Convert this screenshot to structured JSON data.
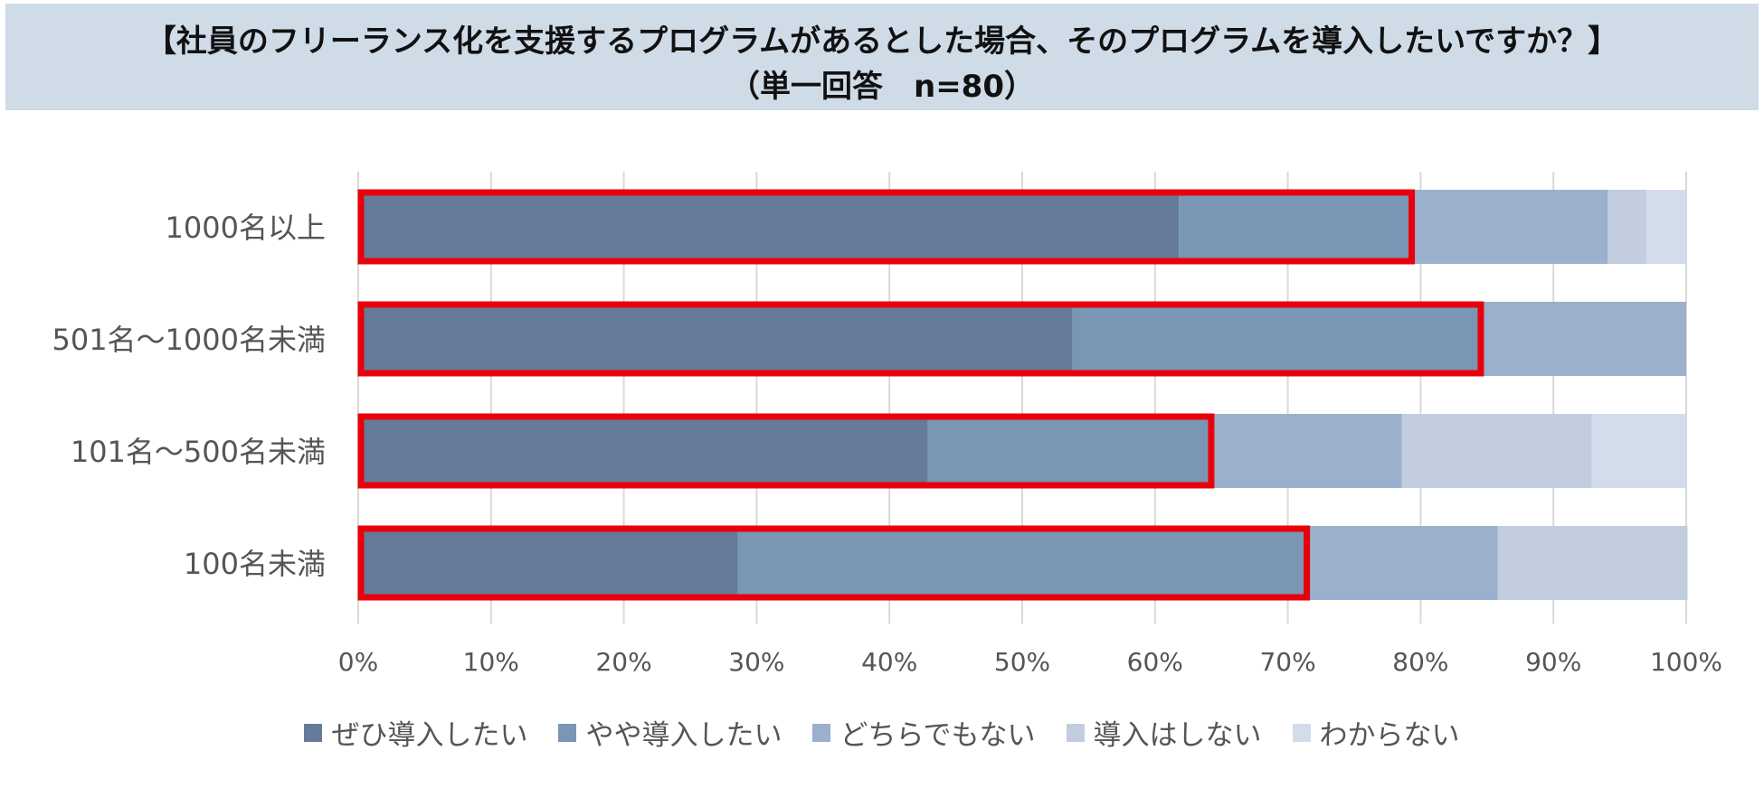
{
  "title": {
    "line1": "【社員のフリーランス化を支援するプログラムがあるとした場合、そのプログラムを導入したいですか？】",
    "line2": "（単一回答　n=80）"
  },
  "colors": {
    "title_band": "#d0dbe8",
    "highlight": "#e8000b",
    "grid": "#d9d9d9",
    "series": [
      "#667b99",
      "#7996b5",
      "#9bb0cd",
      "#c2cedf",
      "#d2dcea"
    ]
  },
  "chart_data": {
    "type": "bar",
    "orientation": "horizontal",
    "stacked": "percent",
    "categories": [
      "1000名以上",
      "501名～1000名未満",
      "101名～500名未満",
      "100名未満"
    ],
    "series": [
      {
        "name": "ぜひ導入したい",
        "values": [
          61.8,
          53.8,
          42.9,
          28.6
        ]
      },
      {
        "name": "やや導入したい",
        "values": [
          17.6,
          30.8,
          21.4,
          42.9
        ]
      },
      {
        "name": "どちらでもない",
        "values": [
          14.7,
          15.4,
          14.3,
          14.3
        ]
      },
      {
        "name": "導入はしない",
        "values": [
          2.9,
          0,
          14.3,
          14.3
        ]
      },
      {
        "name": "わからない",
        "values": [
          3.0,
          0,
          7.1,
          0
        ]
      }
    ],
    "highlight": "ぜひ導入したい + やや導入したい",
    "x_ticks": [
      "0%",
      "10%",
      "20%",
      "30%",
      "40%",
      "50%",
      "60%",
      "70%",
      "80%",
      "90%",
      "100%"
    ],
    "xlim": [
      0,
      100
    ],
    "grid": true,
    "legend_position": "bottom"
  }
}
